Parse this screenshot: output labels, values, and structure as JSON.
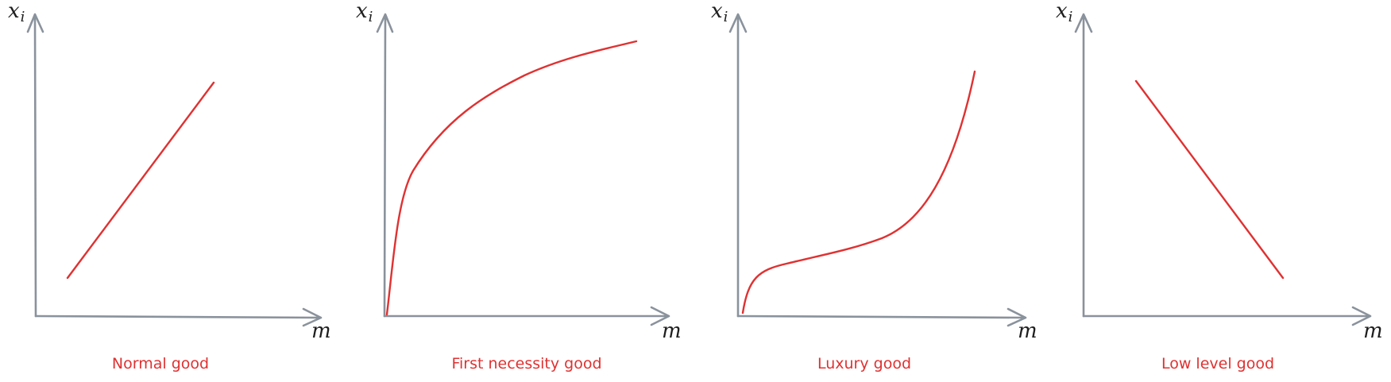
{
  "colors": {
    "axis": "#8a929c",
    "curve": "#e03131",
    "caption": "#e03131",
    "label": "#1e1e1e"
  },
  "panels": [
    {
      "caption": "Normal good",
      "y_label": "x",
      "y_label_sub": "i",
      "x_label": "m",
      "curve_shape": "linear-increasing"
    },
    {
      "caption": "First necessity good",
      "y_label": "x",
      "y_label_sub": "i",
      "x_label": "m",
      "curve_shape": "concave-increasing"
    },
    {
      "caption": "Luxury good",
      "y_label": "x",
      "y_label_sub": "i",
      "x_label": "m",
      "curve_shape": "convex-increasing"
    },
    {
      "caption": "Low level good",
      "y_label": "x",
      "y_label_sub": "i",
      "x_label": "m",
      "curve_shape": "linear-decreasing"
    }
  ]
}
